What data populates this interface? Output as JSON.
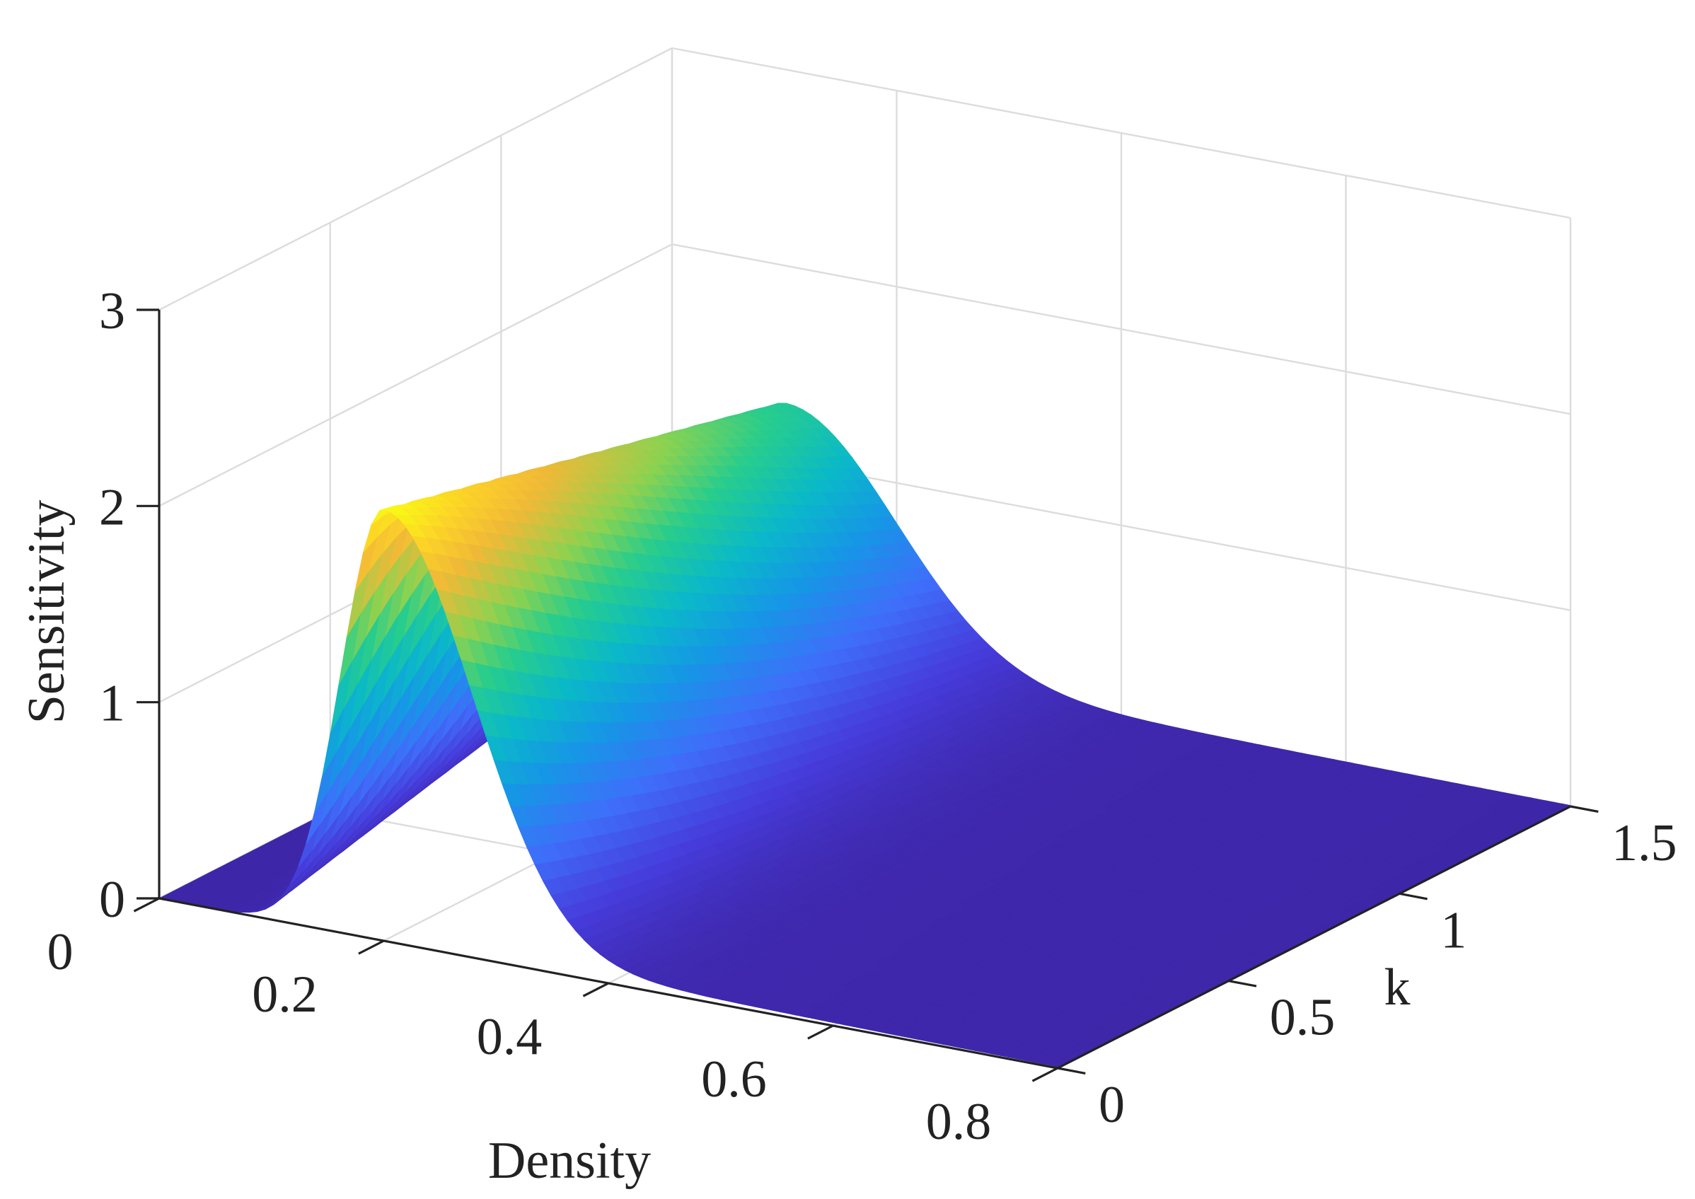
{
  "chart_data": {
    "type": "surface",
    "title": "",
    "xlabel": "Density",
    "ylabel": "k",
    "zlabel": "Sensitivity",
    "xlim": [
      0,
      0.8
    ],
    "ylim": [
      0,
      1.5
    ],
    "zlim": [
      0,
      3
    ],
    "x_ticks": [
      0,
      0.2,
      0.4,
      0.6,
      0.8
    ],
    "x_tick_labels": [
      "0",
      "0.2",
      "0.4",
      "0.6",
      "0.8"
    ],
    "y_ticks": [
      0,
      0.5,
      1,
      1.5
    ],
    "y_tick_labels": [
      "0",
      "0.5",
      "1",
      "1.5"
    ],
    "z_ticks": [
      0,
      1,
      2,
      3
    ],
    "z_tick_labels": [
      "0",
      "1",
      "2",
      "3"
    ],
    "grid": true,
    "colormap": "parula",
    "peaks": [
      {
        "density": 0.2,
        "k": 0.0,
        "sensitivity": 2.2
      },
      {
        "density": 0.1,
        "k": 1.5,
        "sensitivity": 1.3
      }
    ],
    "baseline_sensitivity": 0.0
  }
}
